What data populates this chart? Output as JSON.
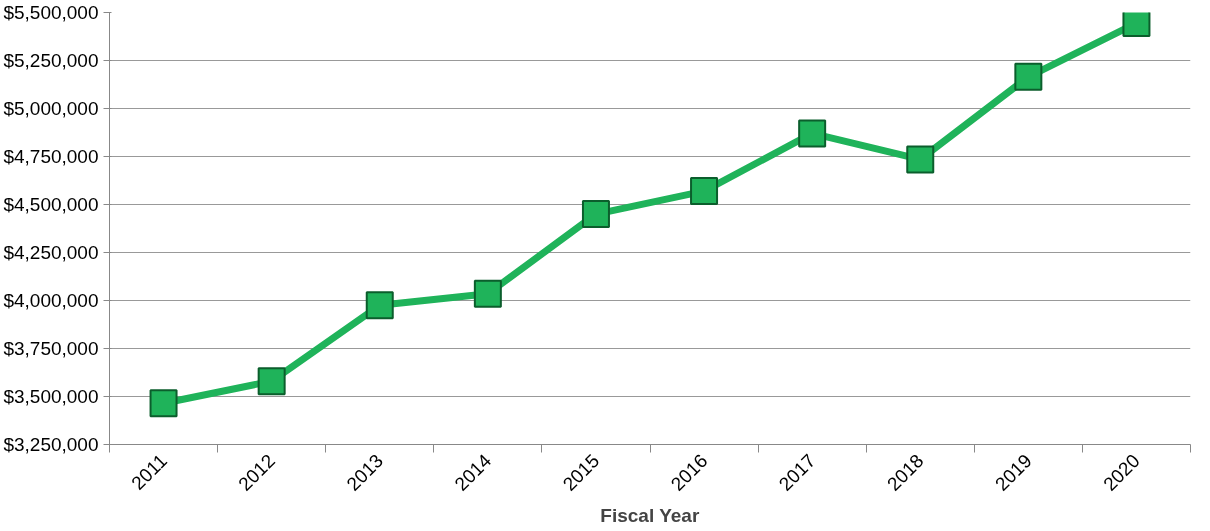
{
  "chart_data": {
    "type": "line",
    "xlabel": "Fiscal Year",
    "categories": [
      "2011",
      "2012",
      "2013",
      "2014",
      "2015",
      "2016",
      "2017",
      "2018",
      "2019",
      "2020"
    ],
    "series": [
      {
        "color": "#1fb35a",
        "values": [
          3465000,
          3580000,
          3975000,
          4035000,
          4450000,
          4570000,
          4870000,
          4735000,
          5165000,
          5445000
        ]
      }
    ],
    "ylim": [
      3250000,
      5500000
    ],
    "yticks": [
      {
        "value": 3250000,
        "label": "$3,250,000"
      },
      {
        "value": 3500000,
        "label": "$3,500,000"
      },
      {
        "value": 3750000,
        "label": "$3,750,000"
      },
      {
        "value": 4000000,
        "label": "$4,000,000"
      },
      {
        "value": 4250000,
        "label": "$4,250,000"
      },
      {
        "value": 4500000,
        "label": "$4,500,000"
      },
      {
        "value": 4750000,
        "label": "$4,750,000"
      },
      {
        "value": 5000000,
        "label": "$5,000,000"
      },
      {
        "value": 5250000,
        "label": "$5,250,000"
      },
      {
        "value": 5500000,
        "label": "$5,500,000"
      }
    ],
    "grid": "y",
    "marker": "square",
    "line_style": "solid"
  }
}
